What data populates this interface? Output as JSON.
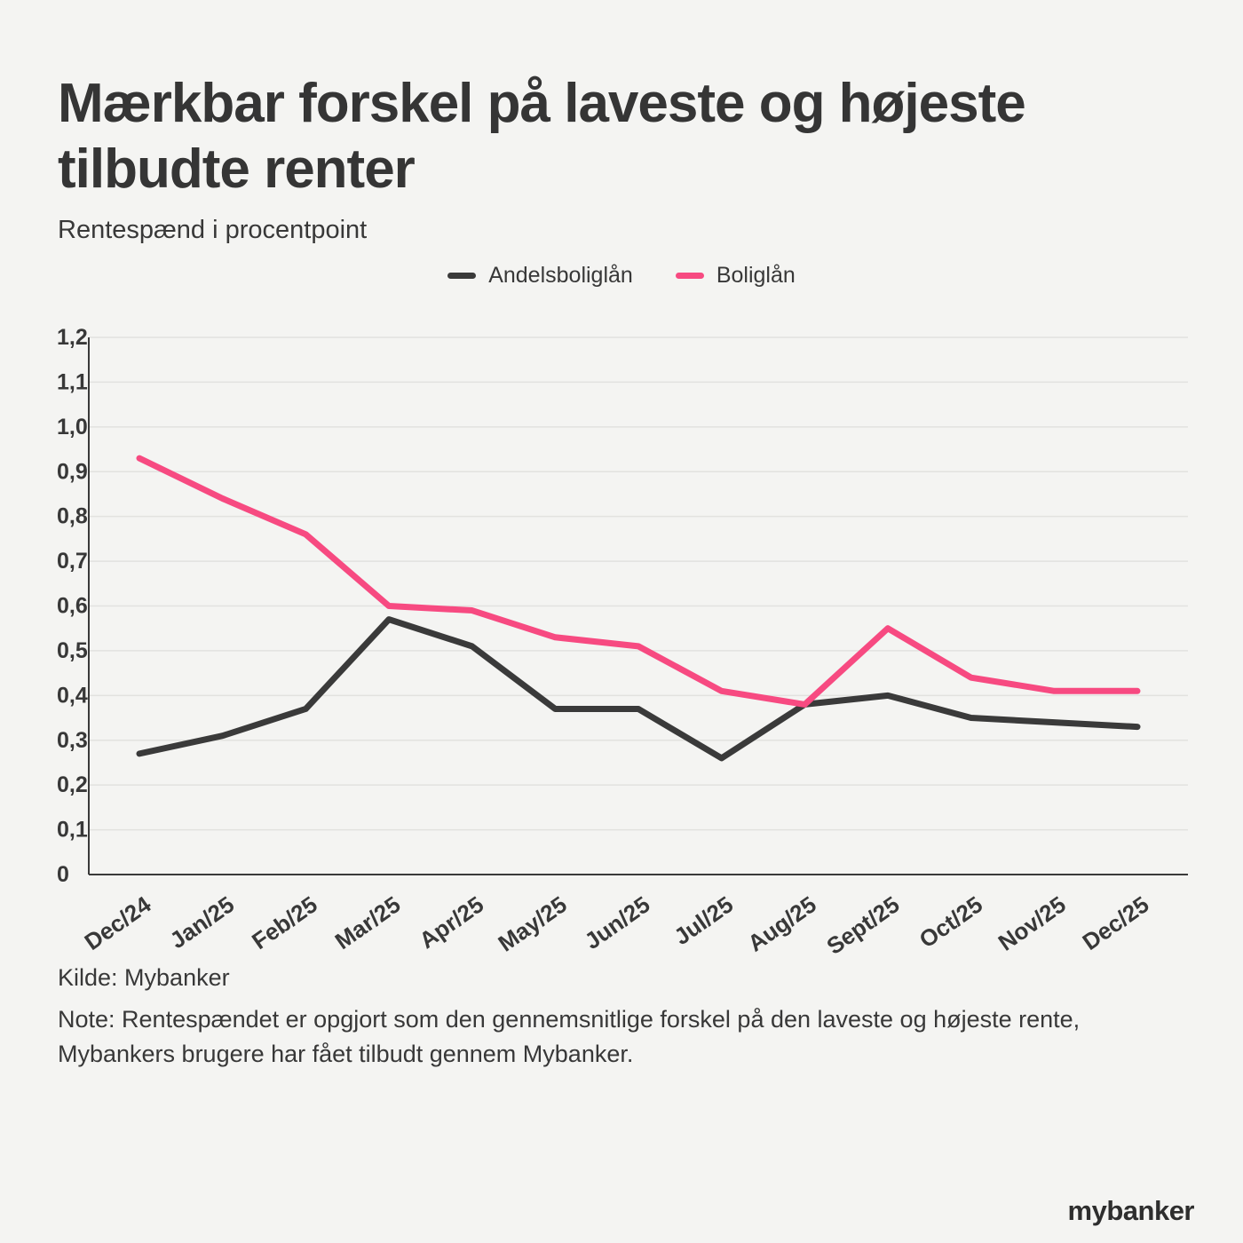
{
  "page": {
    "title": "Mærkbar forskel på laveste og højeste tilbudte renter",
    "subtitle": "Rentespænd i procentpoint",
    "source": "Kilde: Mybanker",
    "note": "Note: Rentespændet er opgjort som den gennemsnitlige forskel på den laveste og højeste rente, Mybankers brugere har fået tilbudt gennem Mybanker.",
    "logo": "mybanker"
  },
  "colors": {
    "background": "#f4f4f2",
    "grid": "#e2e2df",
    "axis": "#3a3a3a",
    "text": "#383838",
    "andelsboliglaan_line": "#3a3a3a",
    "boliglaan_line": "#f74a81"
  },
  "chart_data": {
    "type": "line",
    "title": "Mærkbar forskel på laveste og højeste tilbudte renter",
    "subtitle": "Rentespænd i procentpoint",
    "categories": [
      "Dec/24",
      "Jan/25",
      "Feb/25",
      "Mar/25",
      "Apr/25",
      "May/25",
      "Jun/25",
      "Jul/25",
      "Aug/25",
      "Sept/25",
      "Oct/25",
      "Nov/25",
      "Dec/25"
    ],
    "series": [
      {
        "name": "Andelsboliglån",
        "color": "#3a3a3a",
        "values": [
          0.27,
          0.31,
          0.37,
          0.57,
          0.51,
          0.37,
          0.37,
          0.26,
          0.38,
          0.4,
          0.35,
          0.34,
          0.33
        ]
      },
      {
        "name": "Boliglån",
        "color": "#f74a81",
        "values": [
          0.93,
          0.84,
          0.76,
          0.6,
          0.59,
          0.53,
          0.51,
          0.41,
          0.38,
          0.55,
          0.44,
          0.41,
          0.41
        ]
      }
    ],
    "ylabel": "Rentespænd i procentpoint",
    "xlabel": "",
    "ylim": [
      0,
      1.2
    ],
    "ytick_step": 0.1,
    "ytick_labels": [
      "0",
      "0,1",
      "0,2",
      "0,3",
      "0,4",
      "0,5",
      "0,6",
      "0,7",
      "0,8",
      "0,9",
      "1,0",
      "1,1",
      "1,2"
    ],
    "grid": true,
    "legend_position": "top-center"
  }
}
